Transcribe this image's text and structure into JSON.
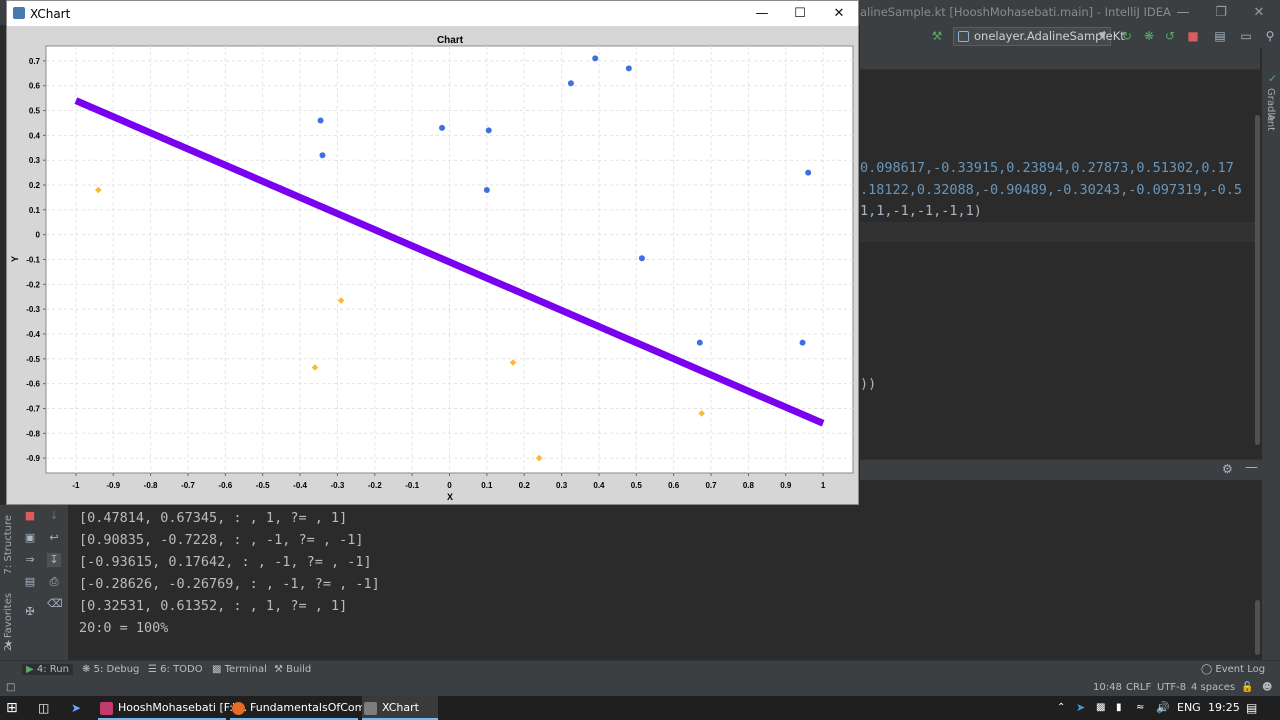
{
  "ide": {
    "title": "alineSample.kt [HooshMohasebati.main] - IntelliJ IDEA",
    "run_config": "onelayer.AdalineSampleKt",
    "code_lines": [
      "0.098617,-0.33915,0.23894,0.27873,0.51302,0.17",
      ".18122,0.32088,-0.90489,-0.30243,-0.097319,-0.5",
      "1,1,-1,-1,-1,1)",
      "))"
    ],
    "right_strip": [
      "Gradle",
      "Ant"
    ],
    "left_strip": [
      "7: Structure",
      "2: Favorites"
    ],
    "console_lines": [
      "[0.47814, 0.67345,  : , 1,  ?= , 1]",
      "[0.90835, -0.7228,  : , -1,  ?= , -1]",
      "[-0.93615, 0.17642,  : , -1,  ?= , -1]",
      "[-0.28626, -0.26769,  : , -1,  ?= , -1]",
      "[0.32531, 0.61352,  : , 1,  ?= , 1]",
      "20:0 = 100%"
    ],
    "bottom_tools": [
      "4: Run",
      "5: Debug",
      "6: TODO",
      "Terminal",
      "Build"
    ],
    "event_log": "Event Log",
    "status": {
      "position": "10:48",
      "line_sep": "CRLF",
      "encoding": "UTF-8",
      "indent": "4 spaces"
    }
  },
  "xchart": {
    "window_title": "XChart",
    "chart_data": {
      "type": "scatter",
      "title": "Chart",
      "xlabel": "X",
      "ylabel": "Y",
      "xlim": [
        -1.08,
        1.08
      ],
      "ylim": [
        -0.96,
        0.76
      ],
      "x_ticks": [
        "-1",
        "-0.9",
        "-0.8",
        "-0.7",
        "-0.6",
        "-0.5",
        "-0.4",
        "-0.3",
        "-0.2",
        "-0.1",
        "0",
        "0.1",
        "0.2",
        "0.3",
        "0.4",
        "0.5",
        "0.6",
        "0.7",
        "0.8",
        "0.9",
        "1"
      ],
      "y_ticks": [
        "0.7",
        "0.6",
        "0.5",
        "0.4",
        "0.3",
        "0.2",
        "0.1",
        "0",
        "-0.1",
        "-0.2",
        "-0.3",
        "-0.4",
        "-0.5",
        "-0.6",
        "-0.7",
        "-0.8",
        "-0.9"
      ],
      "grid": true,
      "series": [
        {
          "color": "#3f6fe0",
          "marker": "circle",
          "points": [
            [
              0.39,
              0.71
            ],
            [
              0.48,
              0.67
            ],
            [
              0.325,
              0.61
            ],
            [
              -0.345,
              0.46
            ],
            [
              -0.02,
              0.43
            ],
            [
              0.105,
              0.42
            ],
            [
              -0.34,
              0.32
            ],
            [
              0.1,
              0.18
            ],
            [
              0.96,
              0.25
            ],
            [
              0.515,
              -0.095
            ],
            [
              0.67,
              -0.435
            ],
            [
              0.945,
              -0.435
            ]
          ]
        },
        {
          "color": "#ffb833",
          "marker": "diamond",
          "points": [
            [
              -0.94,
              0.18
            ],
            [
              -0.29,
              -0.265
            ],
            [
              -0.36,
              -0.535
            ],
            [
              0.17,
              -0.515
            ],
            [
              0.675,
              -0.72
            ],
            [
              0.24,
              -0.9
            ]
          ]
        },
        {
          "color": "#7a00f0",
          "marker": "line",
          "points": [
            [
              -1.0,
              0.54
            ],
            [
              1.0,
              -0.76
            ]
          ]
        }
      ]
    }
  },
  "taskbar": {
    "apps": [
      "HooshMohasebati [F:\\...",
      "FundamentalsOfCom...",
      "XChart"
    ],
    "language": "ENG",
    "time": "19:25"
  }
}
